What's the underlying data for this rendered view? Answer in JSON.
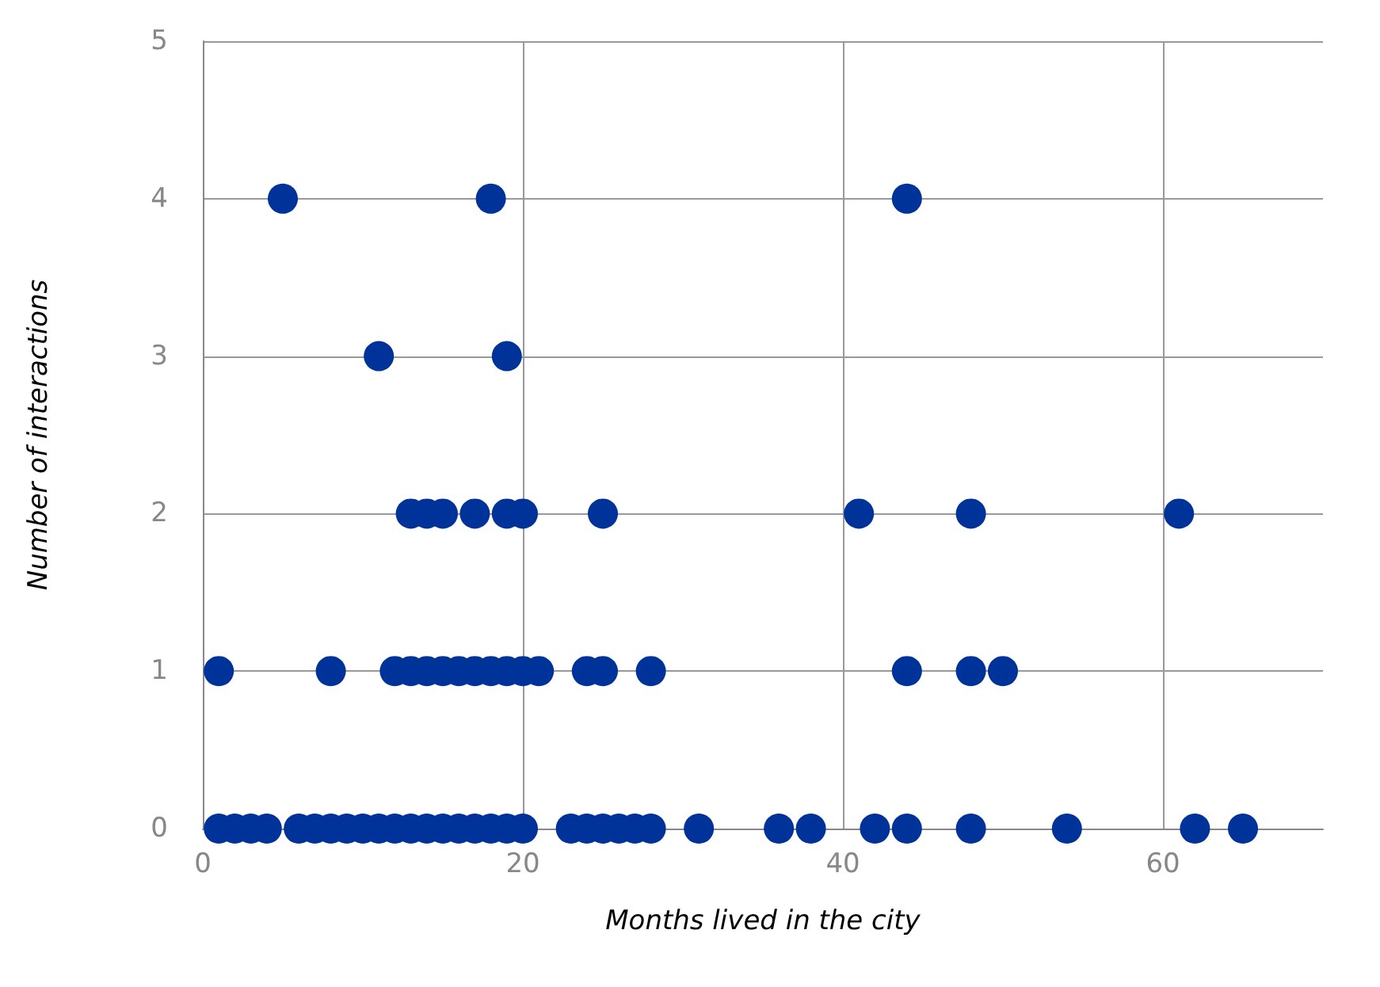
{
  "chart_data": {
    "type": "scatter",
    "xlabel": "Months lived in the city",
    "ylabel": "Number of interactions",
    "xlim": [
      0,
      70
    ],
    "xticks": [
      0,
      20,
      40,
      60
    ],
    "ylim": [
      0,
      5
    ],
    "yticks": [
      0,
      1,
      2,
      3,
      4,
      5
    ],
    "grid": true,
    "marker": "circle",
    "series": [
      {
        "color": "#003399",
        "x": [
          1,
          2,
          3,
          4,
          6,
          7,
          8,
          9,
          10,
          11,
          12,
          13,
          14,
          15,
          16,
          17,
          18,
          19,
          20,
          23,
          24,
          25,
          26,
          27,
          28,
          31,
          36,
          38,
          42,
          44,
          48,
          54,
          62,
          65
        ],
        "values": [
          0,
          0,
          0,
          0,
          0,
          0,
          0,
          0,
          0,
          0,
          0,
          0,
          0,
          0,
          0,
          0,
          0,
          0,
          0,
          0,
          0,
          0,
          0,
          0,
          0,
          0,
          0,
          0,
          0,
          0,
          0,
          0,
          0,
          0
        ]
      },
      {
        "color": "#003399",
        "x": [
          1,
          8,
          12,
          13,
          14,
          15,
          16,
          17,
          18,
          19,
          20,
          21,
          24,
          25,
          28,
          44,
          48,
          50
        ],
        "values": [
          1,
          1,
          1,
          1,
          1,
          1,
          1,
          1,
          1,
          1,
          1,
          1,
          1,
          1,
          1,
          1,
          1,
          1
        ]
      },
      {
        "color": "#003399",
        "x": [
          13,
          14,
          15,
          17,
          19,
          20,
          25,
          41,
          48,
          61
        ],
        "values": [
          2,
          2,
          2,
          2,
          2,
          2,
          2,
          2,
          2,
          2
        ]
      },
      {
        "color": "#003399",
        "x": [
          11,
          19
        ],
        "values": [
          3,
          3
        ]
      },
      {
        "color": "#003399",
        "x": [
          5,
          18,
          44
        ],
        "values": [
          4,
          4,
          4
        ]
      }
    ]
  }
}
